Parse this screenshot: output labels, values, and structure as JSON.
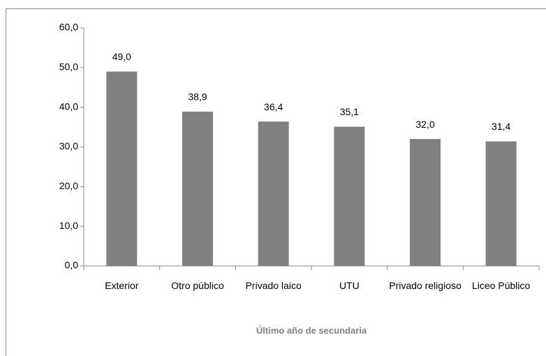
{
  "chart_data": {
    "type": "bar",
    "categories": [
      "Exterior",
      "Otro público",
      "Privado laico",
      "UTU",
      "Privado religioso",
      "Liceo Público"
    ],
    "values": [
      49.0,
      38.9,
      36.4,
      35.1,
      32.0,
      31.4
    ],
    "value_labels": [
      "49,0",
      "38,9",
      "36,4",
      "35,1",
      "32,0",
      "31,4"
    ],
    "color": "#808080",
    "xlabel": "Último año de secundaria",
    "ylim": [
      0,
      60
    ],
    "yticks": [
      {
        "value": 0,
        "label": "0,0"
      },
      {
        "value": 10,
        "label": "10,0"
      },
      {
        "value": 20,
        "label": "20,0"
      },
      {
        "value": 30,
        "label": "30,0"
      },
      {
        "value": 40,
        "label": "40,0"
      },
      {
        "value": 50,
        "label": "50,0"
      },
      {
        "value": 60,
        "label": "60,0"
      }
    ],
    "grid": false
  }
}
